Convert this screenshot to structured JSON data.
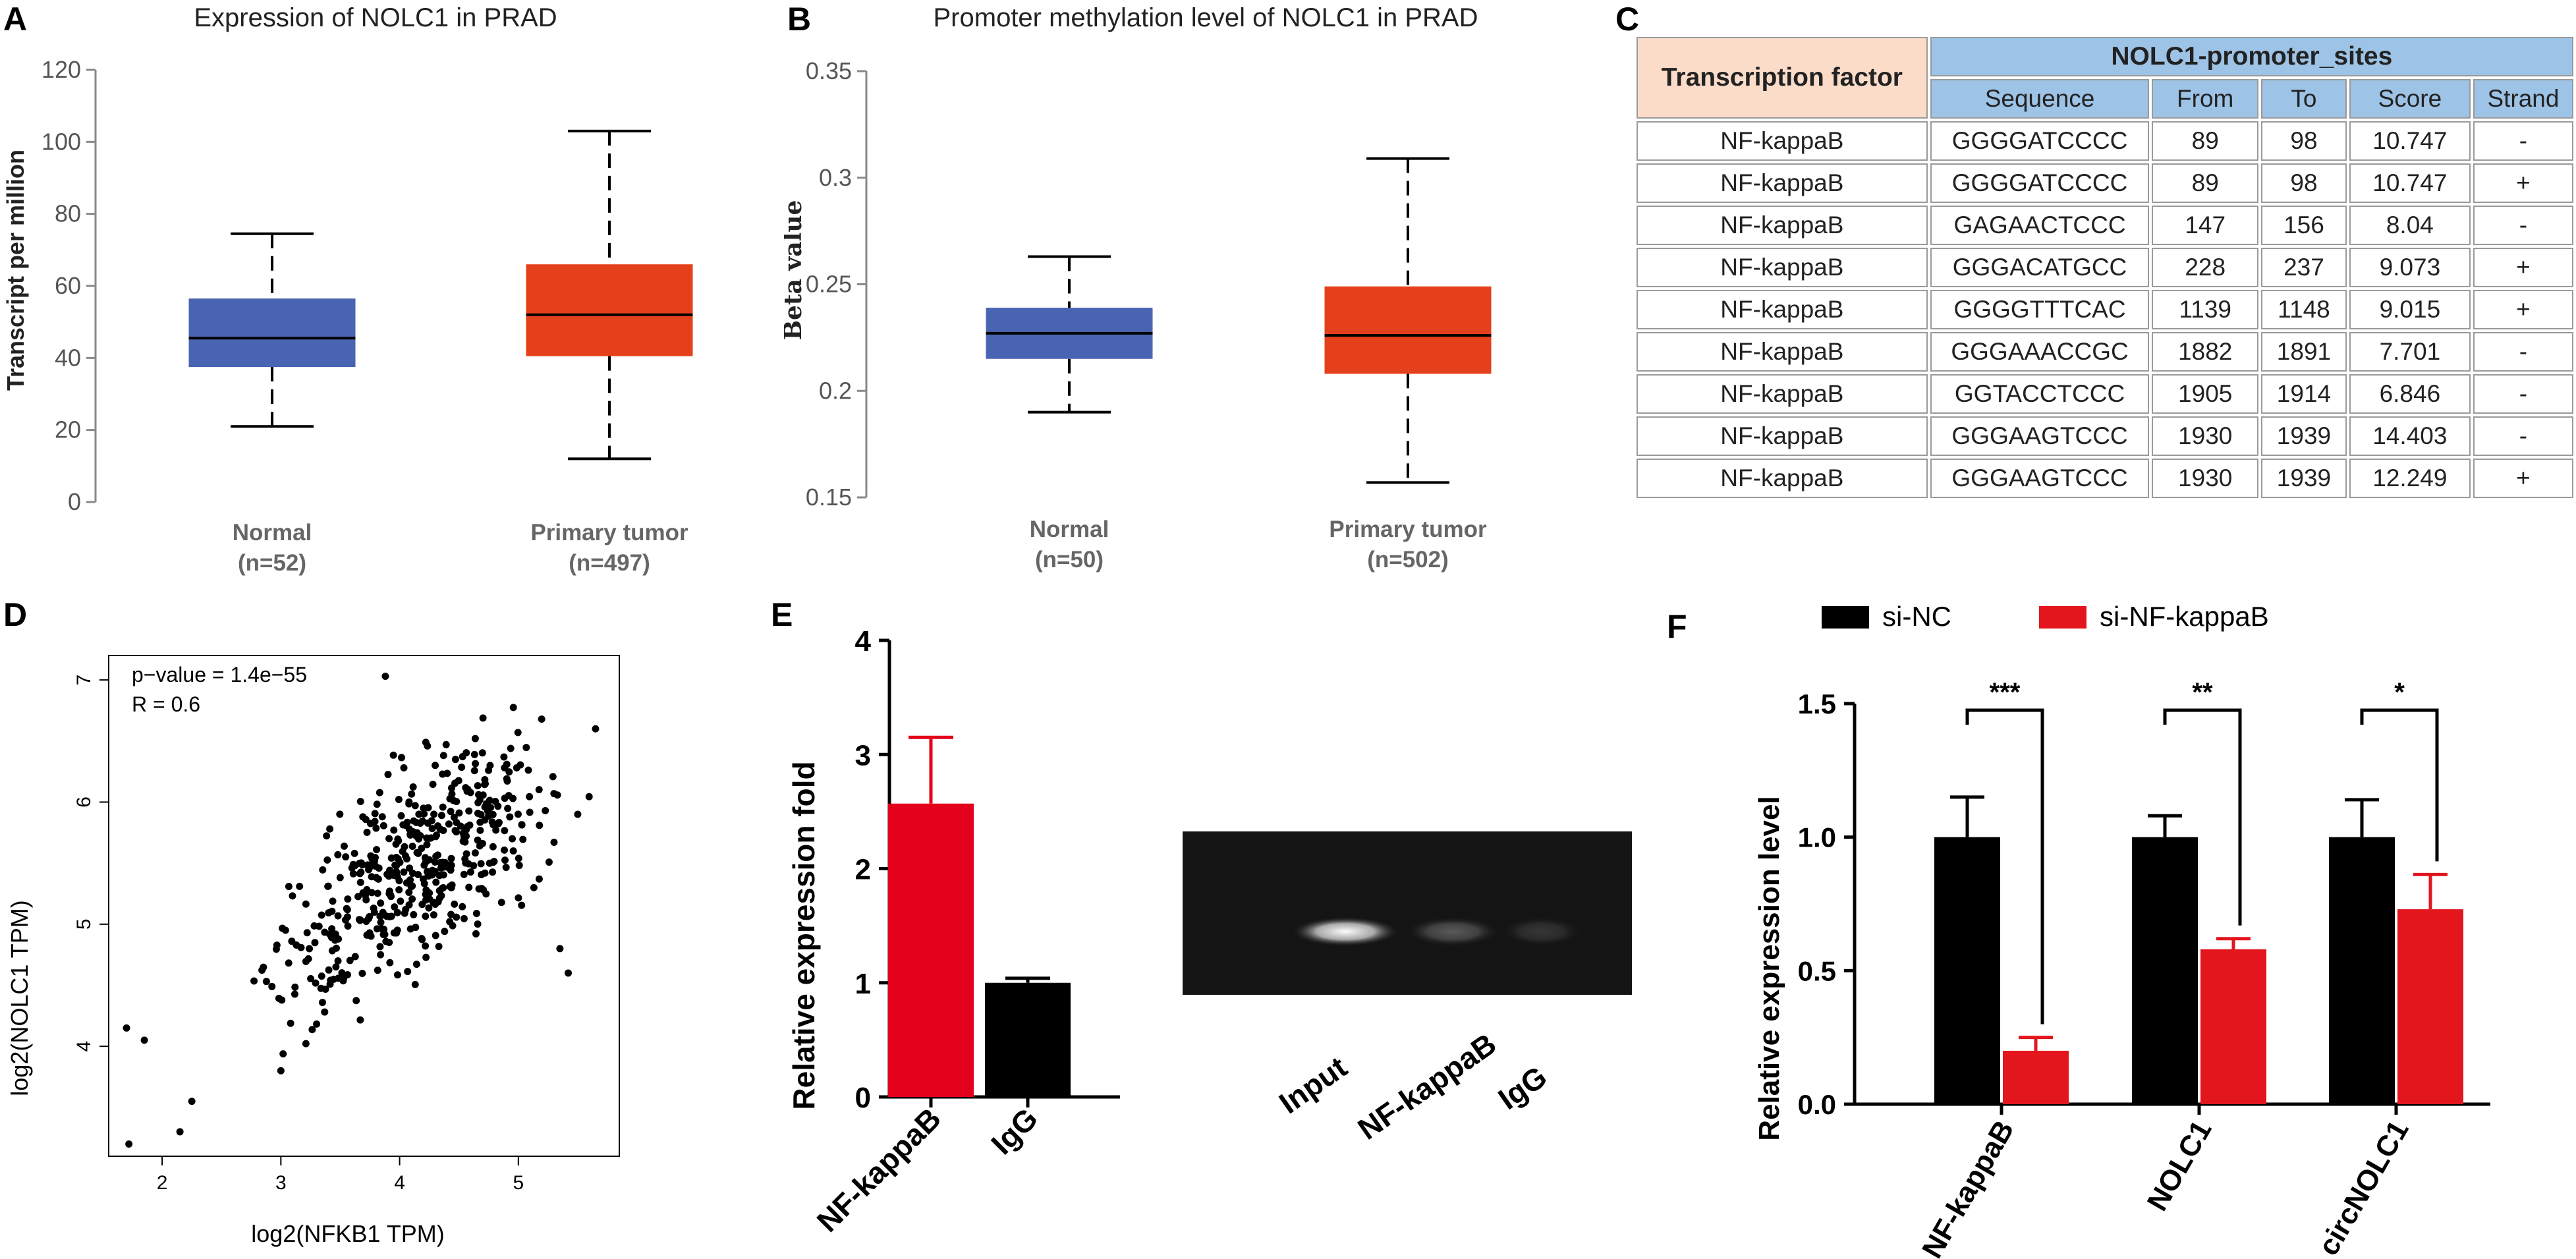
{
  "panel_a": {
    "label": "A",
    "chart_data": {
      "type": "box",
      "title": "Expression of NOLC1 in PRAD",
      "ylabel": "Transcript per million",
      "ylim": [
        0,
        120
      ],
      "yticks": [
        0,
        20,
        40,
        60,
        80,
        100,
        120
      ],
      "groups": [
        {
          "name": "Normal",
          "n": "(n=52)",
          "min": 21,
          "q1": 37.5,
          "median": 45.5,
          "q3": 56.5,
          "max": 74.5,
          "color": "#4a64b4"
        },
        {
          "name": "Primary tumor",
          "n": "(n=497)",
          "min": 12,
          "q1": 40.5,
          "median": 52,
          "q3": 66,
          "max": 103,
          "color": "#e4401b"
        }
      ]
    }
  },
  "panel_b": {
    "label": "B",
    "chart_data": {
      "type": "box",
      "title": "Promoter methylation level of NOLC1 in PRAD",
      "ylabel": "Beta value",
      "ylim": [
        0.15,
        0.35
      ],
      "yticks": [
        "0.15",
        "0.2",
        "0.25",
        "0.3",
        "0.35"
      ],
      "groups": [
        {
          "name": "Normal",
          "n": "(n=50)",
          "min": 0.19,
          "q1": 0.215,
          "median": 0.227,
          "q3": 0.239,
          "max": 0.263,
          "color": "#4a64b4"
        },
        {
          "name": "Primary tumor",
          "n": "(n=502)",
          "min": 0.157,
          "q1": 0.208,
          "median": 0.226,
          "q3": 0.249,
          "max": 0.309,
          "color": "#e4401b"
        }
      ]
    }
  },
  "panel_c": {
    "label": "C",
    "chart_data": {
      "type": "table",
      "tf_header": "Transcription factor",
      "site_header": "NOLC1-promoter_sites",
      "columns": [
        "Sequence",
        "From",
        "To",
        "Score",
        "Strand"
      ],
      "rows": [
        [
          "NF-kappaB",
          "GGGGATCCCC",
          "89",
          "98",
          "10.747",
          "-"
        ],
        [
          "NF-kappaB",
          "GGGGATCCCC",
          "89",
          "98",
          "10.747",
          "+"
        ],
        [
          "NF-kappaB",
          "GAGAACTCCC",
          "147",
          "156",
          "8.04",
          "-"
        ],
        [
          "NF-kappaB",
          "GGGACATGCC",
          "228",
          "237",
          "9.073",
          "+"
        ],
        [
          "NF-kappaB",
          "GGGGTTTCAC",
          "1139",
          "1148",
          "9.015",
          "+"
        ],
        [
          "NF-kappaB",
          "GGGAAACCGC",
          "1882",
          "1891",
          "7.701",
          "-"
        ],
        [
          "NF-kappaB",
          "GGTACCTCCC",
          "1905",
          "1914",
          "6.846",
          "-"
        ],
        [
          "NF-kappaB",
          "GGGAAGTCCC",
          "1930",
          "1939",
          "14.403",
          "-"
        ],
        [
          "NF-kappaB",
          "GGGAAGTCCC",
          "1930",
          "1939",
          "12.249",
          "+"
        ]
      ]
    }
  },
  "panel_d": {
    "label": "D",
    "chart_data": {
      "type": "scatter",
      "xlabel": "log2(NFKB1 TPM)",
      "ylabel": "log2(NOLC1 TPM)",
      "xlim": [
        1.55,
        5.85
      ],
      "ylim": [
        3.1,
        7.2
      ],
      "xticks": [
        2,
        3,
        4,
        5
      ],
      "yticks": [
        4,
        5,
        6,
        7
      ],
      "pvalue_text": "p−value = 1.4e−55",
      "r_text": "R = 0.6",
      "n_points": 497,
      "trend": {
        "x_mean": 4.1,
        "x_sd": 0.65,
        "intercept": 2.5,
        "slope": 0.72,
        "resid_sd": 0.42
      },
      "highlight_points": [
        [
          1.72,
          3.2
        ],
        [
          2.15,
          3.3
        ],
        [
          1.7,
          4.15
        ],
        [
          1.85,
          4.05
        ],
        [
          3.88,
          7.03
        ],
        [
          5.65,
          6.6
        ],
        [
          5.5,
          5.9
        ],
        [
          5.35,
          4.8
        ],
        [
          5.42,
          4.6
        ],
        [
          2.25,
          3.55
        ],
        [
          3.0,
          3.8
        ]
      ]
    }
  },
  "panel_e": {
    "label": "E",
    "chart_data": {
      "type": "bar",
      "ylabel": "Relative expression fold",
      "ylim": [
        0,
        4
      ],
      "yticks": [
        0,
        1,
        2,
        3,
        4
      ],
      "categories": [
        "NF-kappaB",
        "IgG"
      ],
      "values": [
        2.57,
        1.0
      ],
      "errors": [
        0.58,
        0.04
      ],
      "colors": [
        "#e3001b",
        "#000000"
      ]
    },
    "gel": {
      "lanes": [
        "Input",
        "NF-kappaB",
        "IgG"
      ],
      "band_intensity": [
        1.0,
        0.3,
        0.15
      ]
    }
  },
  "panel_f": {
    "label": "F",
    "chart_data": {
      "type": "bar",
      "ylabel": "Relative expression level",
      "ylim": [
        0,
        1.5
      ],
      "yticks": [
        "0.0",
        "0.5",
        "1.0",
        "1.5"
      ],
      "categories": [
        "NF-kappaB",
        "NOLC1",
        "circNOLC1"
      ],
      "series": [
        {
          "name": "si-NC",
          "color": "#000000",
          "values": [
            1.0,
            1.0,
            1.0
          ],
          "errors": [
            0.15,
            0.08,
            0.14
          ]
        },
        {
          "name": "si-NF-kappaB",
          "color": "#e3161e",
          "values": [
            0.2,
            0.58,
            0.73
          ],
          "errors": [
            0.05,
            0.04,
            0.13
          ]
        }
      ],
      "significance": [
        "***",
        "**",
        "*"
      ]
    }
  }
}
